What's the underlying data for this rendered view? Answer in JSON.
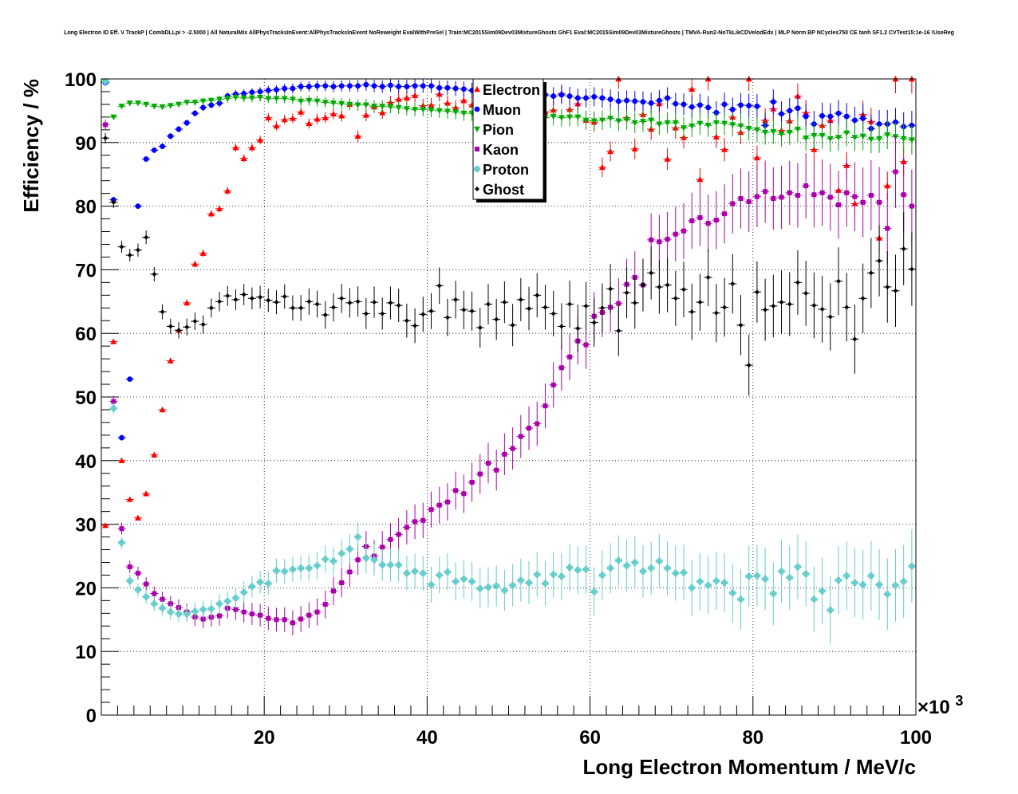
{
  "chart_data": {
    "type": "scatter",
    "title": "Long Electron ID Eff. V TrackP | CombDLLpi > -2.5000 | All NaturalMix AllPhysTracksInEvent:AllPhysTracksInEvent NoReweight EvalWithPreSel | Train:MC2015Sim09Dev03MixtureGhosts GhF1 Eval:MC2015Sim09Dev03MixtureGhosts | TMVA-Run2-NoTkLikCDVelodEdx | MLP Norm BP NCycles750 CE tanh SF1.2 CVTest15:1e-16 !UseReg",
    "xlabel": "Long Electron Momentum / MeV/c",
    "ylabel": "Efficiency / %",
    "x_exponent_label": "×10",
    "x_exponent_power": "3",
    "xlim": [
      0,
      100
    ],
    "ylim": [
      0,
      100
    ],
    "x_ticks": [
      "20",
      "40",
      "60",
      "80",
      "100"
    ],
    "y_ticks": [
      "0",
      "10",
      "20",
      "30",
      "40",
      "50",
      "60",
      "70",
      "80",
      "90",
      "100"
    ],
    "grid": true,
    "legend_position": "top-center",
    "x": [
      0.5,
      1.5,
      2.5,
      3.5,
      4.5,
      5.5,
      6.5,
      7.5,
      8.5,
      9.5,
      10.5,
      11.5,
      12.5,
      13.5,
      14.5,
      15.5,
      16.5,
      17.5,
      18.5,
      19.5,
      20.5,
      21.5,
      22.5,
      23.5,
      24.5,
      25.5,
      26.5,
      27.5,
      28.5,
      29.5,
      30.5,
      31.5,
      32.5,
      33.5,
      34.5,
      35.5,
      36.5,
      37.5,
      38.5,
      39.5,
      40.5,
      41.5,
      42.5,
      43.5,
      44.5,
      45.5,
      46.5,
      47.5,
      48.5,
      49.5,
      50.5,
      51.5,
      52.5,
      53.5,
      54.5,
      55.5,
      56.5,
      57.5,
      58.5,
      59.5,
      60.5,
      61.5,
      62.5,
      63.5,
      64.5,
      65.5,
      66.5,
      67.5,
      68.5,
      69.5,
      70.5,
      71.5,
      72.5,
      73.5,
      74.5,
      75.5,
      76.5,
      77.5,
      78.5,
      79.5,
      80.5,
      81.5,
      82.5,
      83.5,
      84.5,
      85.5,
      86.5,
      87.5,
      88.5,
      89.5,
      90.5,
      91.5,
      92.5,
      93.5,
      94.5,
      95.5,
      96.5,
      97.5,
      98.5,
      99.5
    ],
    "series": [
      {
        "name": "Electron",
        "color": "#ff0000",
        "marker": "triangle-up",
        "values": [
          29.8,
          58.7,
          40.0,
          33.9,
          31.0,
          34.8,
          40.9,
          48.0,
          55.7,
          60.5,
          64.8,
          70.9,
          72.6,
          78.8,
          79.6,
          82.4,
          89.2,
          87.5,
          89.2,
          90.4,
          93.9,
          92.6,
          93.6,
          93.8,
          94.8,
          93.0,
          93.7,
          93.9,
          94.5,
          94.2,
          96.0,
          91.0,
          94.3,
          95.6,
          94.7,
          96.3,
          96.8,
          97.0,
          97.4,
          95.8,
          95.9,
          97.6,
          96.2,
          95.5,
          96.6,
          95.9,
          94.5,
          93.2,
          94.0,
          95.2,
          94.6,
          96.3,
          95.6,
          95.8,
          94.8,
          95.1,
          97.7,
          95.2,
          96.1,
          93.5,
          93.2,
          86.1,
          88.6,
          100.0,
          93.9,
          89.0,
          94.4,
          92.1,
          96.1,
          87.4,
          92.3,
          90.8,
          98.4,
          84.2,
          100.0,
          90.9,
          88.9,
          94.0,
          91.6,
          100.0,
          87.6,
          93.5,
          95.3,
          91.9,
          93.4,
          97.3,
          94.7,
          88.9,
          92.7,
          93.5,
          82.5,
          86.4,
          80.4,
          94.4,
          93.3,
          75.0,
          83.2,
          100.0,
          87.0,
          100.0
        ]
      },
      {
        "name": "Muon",
        "color": "#0000ff",
        "marker": "circle",
        "values": [
          99.4,
          81.0,
          43.6,
          52.8,
          80.0,
          87.4,
          88.8,
          89.4,
          91.0,
          92.1,
          93.1,
          94.6,
          95.5,
          95.9,
          96.2,
          97.3,
          97.6,
          97.7,
          97.9,
          98.0,
          98.2,
          98.3,
          98.5,
          98.5,
          98.8,
          98.8,
          98.9,
          98.9,
          98.8,
          98.9,
          98.9,
          98.9,
          99.1,
          98.9,
          98.8,
          99.0,
          98.8,
          98.8,
          98.9,
          98.9,
          98.9,
          98.6,
          98.6,
          98.5,
          98.4,
          98.2,
          98.1,
          98.1,
          97.9,
          97.8,
          97.6,
          97.6,
          97.6,
          97.5,
          97.5,
          97.3,
          97.5,
          97.3,
          97.0,
          97.0,
          97.2,
          97.0,
          96.8,
          96.5,
          96.6,
          96.5,
          96.4,
          96.2,
          96.6,
          97.0,
          96.1,
          96.0,
          95.6,
          95.9,
          95.5,
          94.7,
          96.0,
          95.2,
          95.9,
          95.8,
          95.7,
          92.7,
          96.4,
          94.5,
          95.0,
          95.4,
          94.1,
          92.9,
          94.2,
          94.1,
          94.6,
          94.1,
          93.5,
          93.8,
          92.2,
          92.9,
          92.9,
          93.2,
          92.5,
          92.7
        ]
      },
      {
        "name": "Pion",
        "color": "#00aa00",
        "marker": "triangle-down",
        "values": [
          99.5,
          94.0,
          95.7,
          96.2,
          96.2,
          96.0,
          95.7,
          95.6,
          95.8,
          96.0,
          96.3,
          96.3,
          96.5,
          96.6,
          96.8,
          96.9,
          97.1,
          97.0,
          97.0,
          97.1,
          96.9,
          96.9,
          96.9,
          96.8,
          96.5,
          96.6,
          96.5,
          96.3,
          96.2,
          96.1,
          96.0,
          95.9,
          95.9,
          95.7,
          95.7,
          95.6,
          95.5,
          95.3,
          95.2,
          95.2,
          95.1,
          95.0,
          94.9,
          94.8,
          94.6,
          94.6,
          94.5,
          94.5,
          94.2,
          94.3,
          94.1,
          94.3,
          94.1,
          94.0,
          93.9,
          94.1,
          93.9,
          94.0,
          94.0,
          93.5,
          93.4,
          93.5,
          93.8,
          93.4,
          93.6,
          93.1,
          93.3,
          93.5,
          92.9,
          93.1,
          93.1,
          92.3,
          92.6,
          93.0,
          92.7,
          93.1,
          93.0,
          92.8,
          92.6,
          92.2,
          92.0,
          91.6,
          91.7,
          91.3,
          91.6,
          92.1,
          90.7,
          91.1,
          91.1,
          90.6,
          90.8,
          91.5,
          90.8,
          91.0,
          90.5,
          90.6,
          91.2,
          90.9,
          90.6,
          90.4
        ]
      },
      {
        "name": "Kaon",
        "color": "#aa00aa",
        "marker": "square",
        "values": [
          92.8,
          49.3,
          29.3,
          23.3,
          22.3,
          20.6,
          19.1,
          18.2,
          17.5,
          16.9,
          16.2,
          15.4,
          15.1,
          15.4,
          15.6,
          16.8,
          16.6,
          16.2,
          15.9,
          15.7,
          15.2,
          15.0,
          15.0,
          14.5,
          15.1,
          15.7,
          16.2,
          17.4,
          19.5,
          20.8,
          22.5,
          24.4,
          26.5,
          25.0,
          26.4,
          27.6,
          28.4,
          29.5,
          30.4,
          30.6,
          32.3,
          33.0,
          33.5,
          35.3,
          34.8,
          36.6,
          37.9,
          39.6,
          38.5,
          41.0,
          41.9,
          43.8,
          45.1,
          45.8,
          48.6,
          51.9,
          54.6,
          56.3,
          58.8,
          58.2,
          62.7,
          63.3,
          64.1,
          64.7,
          67.7,
          68.8,
          67.6,
          74.7,
          74.4,
          74.8,
          75.6,
          76.1,
          77.7,
          78.2,
          77.3,
          77.8,
          78.8,
          80.4,
          81.2,
          80.7,
          81.5,
          82.3,
          81.2,
          81.4,
          82.1,
          81.7,
          83.2,
          81.8,
          82.1,
          81.4,
          80.2,
          82.1,
          81.5,
          80.6,
          81.7,
          80.6,
          76.5,
          85.4,
          81.8,
          80.0
        ]
      },
      {
        "name": "Proton",
        "color": "#66cccc",
        "marker": "cross",
        "values": [
          99.6,
          48.2,
          27.1,
          21.1,
          19.7,
          18.6,
          17.5,
          16.8,
          16.2,
          15.9,
          15.9,
          16.3,
          16.6,
          16.7,
          17.5,
          17.9,
          18.4,
          19.3,
          20.2,
          20.9,
          20.7,
          22.7,
          22.6,
          22.9,
          23.1,
          23.1,
          23.5,
          24.5,
          24.2,
          25.4,
          26.1,
          28.0,
          24.7,
          24.4,
          23.6,
          23.6,
          23.6,
          22.3,
          22.6,
          22.3,
          20.5,
          22.0,
          22.5,
          21.0,
          21.4,
          21.0,
          19.9,
          20.1,
          20.3,
          19.6,
          20.4,
          21.2,
          20.8,
          22.1,
          20.7,
          22.1,
          21.8,
          23.2,
          22.8,
          22.9,
          19.4,
          22.0,
          23.1,
          24.3,
          23.5,
          24.0,
          22.6,
          23.1,
          24.2,
          23.1,
          22.3,
          22.4,
          20.0,
          21.0,
          20.4,
          21.1,
          20.8,
          19.2,
          18.2,
          21.8,
          21.9,
          21.4,
          19.1,
          22.6,
          21.6,
          23.3,
          22.2,
          18.2,
          19.5,
          16.5,
          21.2,
          21.9,
          20.8,
          20.5,
          21.9,
          20.5,
          19.0,
          20.4,
          21.0,
          23.4
        ]
      },
      {
        "name": "Ghost",
        "color": "#000000",
        "marker": "diamond",
        "values": [
          90.7,
          80.6,
          73.6,
          72.3,
          73.1,
          75.1,
          69.3,
          63.4,
          61.1,
          60.5,
          61.0,
          61.9,
          61.4,
          64.0,
          65.0,
          65.9,
          65.3,
          66.1,
          65.5,
          65.7,
          65.2,
          64.9,
          65.8,
          64.0,
          64.0,
          65.0,
          64.6,
          62.9,
          64.1,
          65.5,
          64.8,
          65.0,
          63.1,
          64.9,
          63.1,
          64.8,
          64.4,
          62.0,
          61.2,
          63.0,
          63.5,
          67.5,
          62.5,
          65.3,
          63.7,
          63.5,
          60.9,
          64.6,
          62.2,
          64.9,
          61.3,
          65.3,
          63.9,
          66.0,
          64.1,
          63.1,
          61.1,
          64.6,
          60.8,
          64.3,
          61.7,
          64.0,
          67.0,
          60.4,
          66.4,
          64.8,
          67.6,
          69.5,
          67.3,
          67.6,
          65.5,
          66.9,
          63.4,
          64.9,
          68.8,
          63.2,
          64.1,
          67.8,
          61.3,
          55.0,
          66.5,
          63.7,
          64.3,
          64.9,
          64.6,
          68.0,
          66.3,
          64.4,
          63.8,
          62.6,
          68.2,
          64.1,
          59.1,
          65.5,
          69.5,
          71.4,
          67.3,
          66.7,
          73.3,
          70.1
        ]
      }
    ]
  }
}
